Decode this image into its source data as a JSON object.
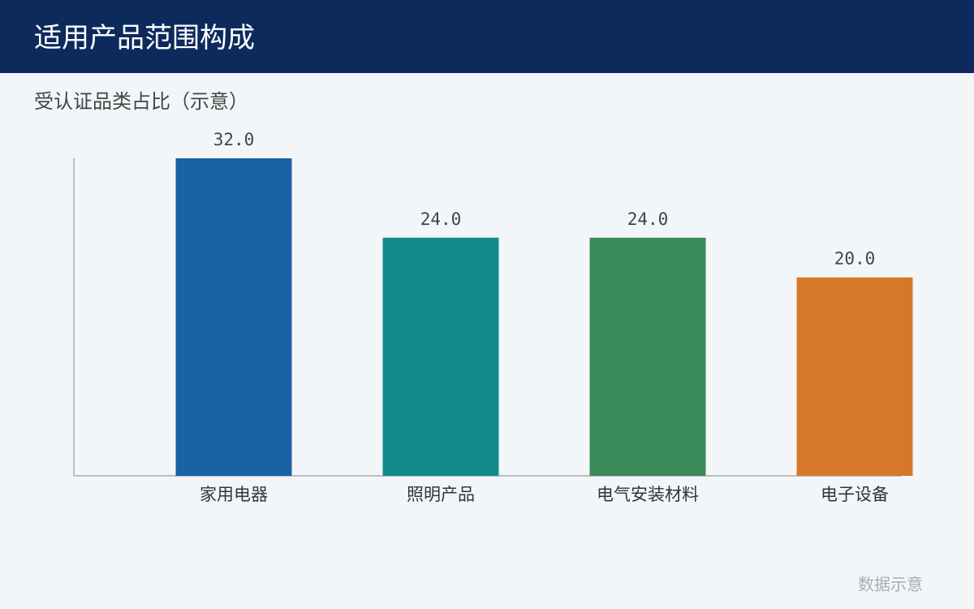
{
  "header": {
    "title": "适用产品范围构成"
  },
  "chart_data": {
    "type": "bar",
    "subtitle": "受认证品类占比（示意）",
    "categories": [
      "家用电器",
      "照明产品",
      "电气安装材料",
      "电子设备"
    ],
    "values": [
      32,
      24,
      24,
      20
    ],
    "value_labels": [
      "32.0",
      "24.0",
      "24.0",
      "20.0"
    ],
    "colors": [
      "#1763a3",
      "#138a8c",
      "#3a8a5a",
      "#d6782a"
    ],
    "ylim": [
      0,
      32
    ],
    "grid": false
  },
  "footer": {
    "note": "数据示意"
  }
}
